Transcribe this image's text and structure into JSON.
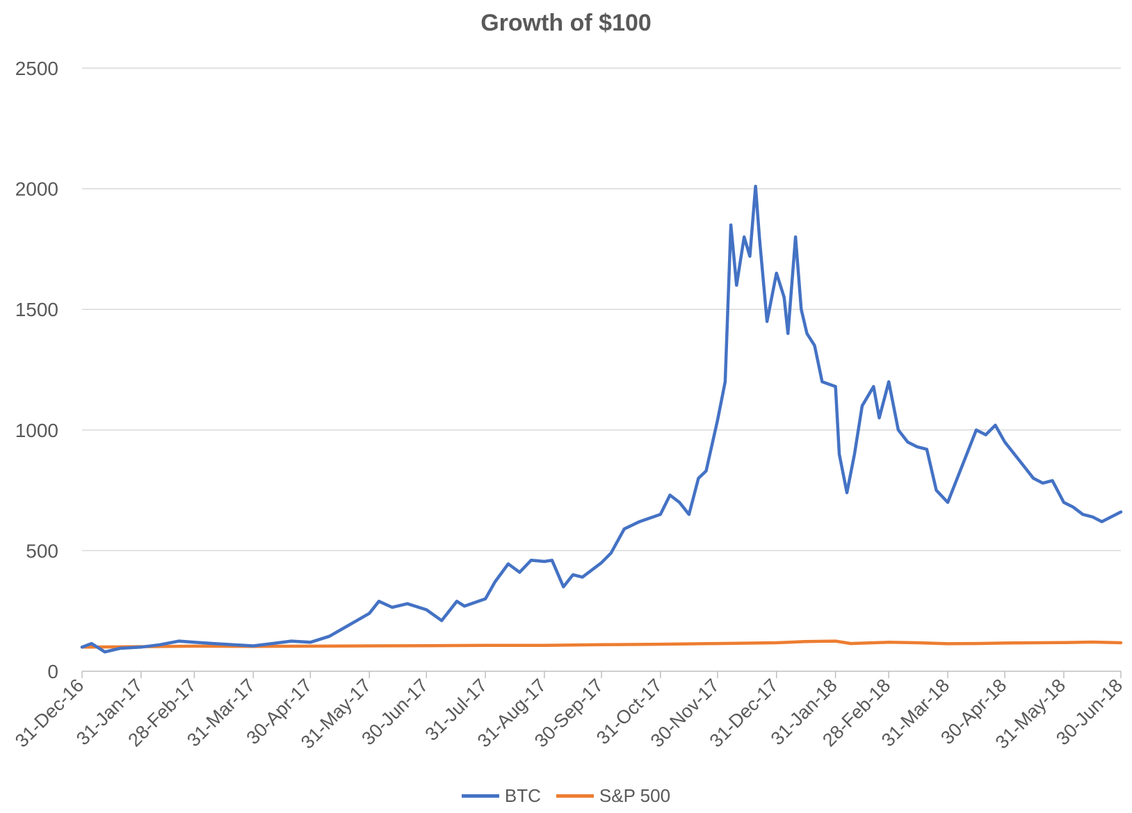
{
  "chart_data": {
    "type": "line",
    "title": "Growth of $100",
    "xlabel": "",
    "ylabel": "",
    "ylim": [
      0,
      2500
    ],
    "y_ticks": [
      0,
      500,
      1000,
      1500,
      2000,
      2500
    ],
    "x_ticks": [
      "31-Dec-16",
      "31-Jan-17",
      "28-Feb-17",
      "31-Mar-17",
      "30-Apr-17",
      "31-May-17",
      "30-Jun-17",
      "31-Jul-17",
      "31-Aug-17",
      "30-Sep-17",
      "31-Oct-17",
      "30-Nov-17",
      "31-Dec-17",
      "31-Jan-18",
      "28-Feb-18",
      "31-Mar-18",
      "30-Apr-18",
      "31-May-18",
      "30-Jun-18"
    ],
    "x_tick_dates": [
      "2016-12-31",
      "2017-01-31",
      "2017-02-28",
      "2017-03-31",
      "2017-04-30",
      "2017-05-31",
      "2017-06-30",
      "2017-07-31",
      "2017-08-31",
      "2017-09-30",
      "2017-10-31",
      "2017-11-30",
      "2017-12-31",
      "2018-01-31",
      "2018-02-28",
      "2018-03-31",
      "2018-04-30",
      "2018-05-31",
      "2018-06-30"
    ],
    "grid": true,
    "legend_position": "bottom",
    "series": [
      {
        "name": "BTC",
        "color": "#4472C4",
        "x": [
          "2016-12-31",
          "2017-01-05",
          "2017-01-12",
          "2017-01-20",
          "2017-01-31",
          "2017-02-10",
          "2017-02-20",
          "2017-02-28",
          "2017-03-10",
          "2017-03-20",
          "2017-03-31",
          "2017-04-10",
          "2017-04-20",
          "2017-04-30",
          "2017-05-10",
          "2017-05-20",
          "2017-05-31",
          "2017-06-05",
          "2017-06-12",
          "2017-06-20",
          "2017-06-30",
          "2017-07-08",
          "2017-07-16",
          "2017-07-20",
          "2017-07-31",
          "2017-08-05",
          "2017-08-12",
          "2017-08-18",
          "2017-08-24",
          "2017-08-31",
          "2017-09-04",
          "2017-09-10",
          "2017-09-15",
          "2017-09-20",
          "2017-09-30",
          "2017-10-05",
          "2017-10-12",
          "2017-10-20",
          "2017-10-31",
          "2017-11-05",
          "2017-11-10",
          "2017-11-15",
          "2017-11-20",
          "2017-11-24",
          "2017-11-30",
          "2017-12-04",
          "2017-12-07",
          "2017-12-10",
          "2017-12-14",
          "2017-12-17",
          "2017-12-20",
          "2017-12-22",
          "2017-12-26",
          "2017-12-31",
          "2018-01-04",
          "2018-01-06",
          "2018-01-10",
          "2018-01-13",
          "2018-01-16",
          "2018-01-20",
          "2018-01-24",
          "2018-01-31",
          "2018-02-02",
          "2018-02-06",
          "2018-02-10",
          "2018-02-14",
          "2018-02-20",
          "2018-02-23",
          "2018-02-28",
          "2018-03-05",
          "2018-03-10",
          "2018-03-15",
          "2018-03-20",
          "2018-03-25",
          "2018-03-31",
          "2018-04-05",
          "2018-04-10",
          "2018-04-15",
          "2018-04-20",
          "2018-04-25",
          "2018-04-30",
          "2018-05-05",
          "2018-05-10",
          "2018-05-15",
          "2018-05-20",
          "2018-05-25",
          "2018-05-31",
          "2018-06-05",
          "2018-06-10",
          "2018-06-15",
          "2018-06-20",
          "2018-06-25",
          "2018-06-30"
        ],
        "values": [
          100,
          115,
          80,
          95,
          100,
          110,
          125,
          120,
          115,
          110,
          105,
          115,
          125,
          120,
          145,
          190,
          240,
          290,
          265,
          280,
          255,
          210,
          290,
          270,
          300,
          370,
          445,
          410,
          460,
          455,
          460,
          350,
          400,
          390,
          450,
          490,
          590,
          620,
          650,
          730,
          700,
          650,
          800,
          830,
          1040,
          1200,
          1850,
          1600,
          1800,
          1720,
          2010,
          1800,
          1450,
          1650,
          1550,
          1400,
          1800,
          1500,
          1400,
          1350,
          1200,
          1180,
          900,
          740,
          900,
          1100,
          1180,
          1050,
          1200,
          1000,
          950,
          930,
          920,
          750,
          700,
          800,
          900,
          1000,
          980,
          1020,
          950,
          900,
          850,
          800,
          780,
          790,
          700,
          680,
          650,
          640,
          620,
          640,
          660
        ]
      },
      {
        "name": "S&P 500",
        "color": "#ED7D31",
        "x": [
          "2016-12-31",
          "2017-01-31",
          "2017-02-28",
          "2017-03-31",
          "2017-04-30",
          "2017-05-31",
          "2017-06-30",
          "2017-07-31",
          "2017-08-31",
          "2017-09-30",
          "2017-10-31",
          "2017-11-30",
          "2017-12-31",
          "2018-01-15",
          "2018-01-31",
          "2018-02-08",
          "2018-02-28",
          "2018-03-15",
          "2018-03-31",
          "2018-04-15",
          "2018-04-30",
          "2018-05-31",
          "2018-06-15",
          "2018-06-30"
        ],
        "values": [
          100,
          102,
          104,
          103,
          104,
          105,
          106,
          107,
          107,
          110,
          112,
          115,
          118,
          123,
          125,
          115,
          120,
          118,
          114,
          115,
          117,
          119,
          121,
          118
        ]
      }
    ]
  }
}
